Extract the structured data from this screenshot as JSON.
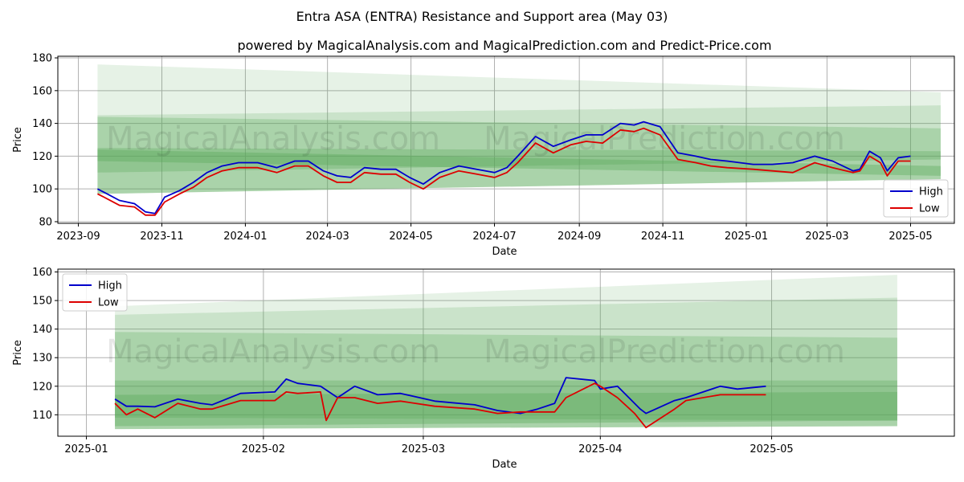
{
  "title": "Entra ASA (ENTRA) Resistance and Support area (May 03)",
  "subtitle": "powered by MagicalAnalysis.com and MagicalPrediction.com and Predict-Price.com",
  "watermarks": [
    "MagicalAnalysis.com",
    "MagicalPrediction.com"
  ],
  "colors": {
    "high": "#0000cc",
    "low": "#dd0000",
    "band": "#5aa85a",
    "grid": "#b0b0b0"
  },
  "chart_data": [
    {
      "type": "line",
      "xlabel": "Date",
      "ylabel": "Price",
      "xlim": [
        "2023-08-17",
        "2025-06-02"
      ],
      "ylim": [
        79,
        181
      ],
      "grid": true,
      "legend": "lower right",
      "x_ticks": [
        "2023-09",
        "2023-11",
        "2024-01",
        "2024-03",
        "2024-05",
        "2024-07",
        "2024-09",
        "2024-11",
        "2025-01",
        "2025-03",
        "2025-05"
      ],
      "y_ticks": [
        80,
        100,
        120,
        140,
        160,
        180
      ],
      "bands": [
        {
          "x": [
            "2023-09-15",
            "2025-05-23"
          ],
          "upper": [
            176,
            159
          ],
          "lower": [
            97,
            106
          ]
        },
        {
          "x": [
            "2023-09-15",
            "2025-05-23"
          ],
          "upper": [
            145,
            151
          ],
          "lower": [
            97,
            106
          ]
        },
        {
          "x": [
            "2023-09-15",
            "2025-05-23"
          ],
          "upper": [
            144,
            137
          ],
          "lower": [
            97,
            106
          ]
        },
        {
          "x": [
            "2023-09-15",
            "2025-05-23"
          ],
          "upper": [
            125,
            123
          ],
          "lower": [
            110,
            118
          ]
        },
        {
          "x": [
            "2023-09-15",
            "2025-05-23"
          ],
          "upper": [
            124,
            114
          ],
          "lower": [
            117,
            108
          ]
        }
      ],
      "series": [
        {
          "name": "High",
          "x": [
            "2023-09-15",
            "2023-09-22",
            "2023-10-01",
            "2023-10-12",
            "2023-10-20",
            "2023-10-27",
            "2023-11-03",
            "2023-11-14",
            "2023-11-24",
            "2023-12-04",
            "2023-12-15",
            "2023-12-27",
            "2024-01-10",
            "2024-01-24",
            "2024-02-06",
            "2024-02-16",
            "2024-02-27",
            "2024-03-08",
            "2024-03-18",
            "2024-03-28",
            "2024-04-09",
            "2024-04-20",
            "2024-04-30",
            "2024-05-10",
            "2024-05-22",
            "2024-06-05",
            "2024-06-18",
            "2024-07-01",
            "2024-07-10",
            "2024-07-18",
            "2024-07-31",
            "2024-08-13",
            "2024-08-26",
            "2024-09-06",
            "2024-09-18",
            "2024-10-01",
            "2024-10-11",
            "2024-10-18",
            "2024-10-30",
            "2024-11-12",
            "2024-11-25",
            "2024-12-06",
            "2024-12-18",
            "2025-01-06",
            "2025-01-20",
            "2025-02-04",
            "2025-02-20",
            "2025-03-05",
            "2025-03-20",
            "2025-03-25",
            "2025-04-01",
            "2025-04-09",
            "2025-04-14",
            "2025-04-22",
            "2025-05-01"
          ],
          "y": [
            100,
            97,
            93,
            91,
            86,
            85,
            95,
            99,
            104,
            110,
            114,
            116,
            116,
            113,
            117,
            117,
            111,
            108,
            107,
            113,
            112,
            112,
            107,
            103,
            110,
            114,
            112,
            110,
            113,
            120,
            132,
            126,
            130,
            133,
            133,
            140,
            139,
            141,
            138,
            122,
            120,
            118,
            117,
            115,
            115,
            116,
            120,
            117,
            111,
            112,
            123,
            119,
            111,
            119,
            120
          ]
        },
        {
          "name": "Low",
          "x": [
            "2023-09-15",
            "2023-09-22",
            "2023-10-01",
            "2023-10-12",
            "2023-10-20",
            "2023-10-27",
            "2023-11-03",
            "2023-11-14",
            "2023-11-24",
            "2023-12-04",
            "2023-12-15",
            "2023-12-27",
            "2024-01-10",
            "2024-01-24",
            "2024-02-06",
            "2024-02-16",
            "2024-02-27",
            "2024-03-08",
            "2024-03-18",
            "2024-03-28",
            "2024-04-09",
            "2024-04-20",
            "2024-04-30",
            "2024-05-10",
            "2024-05-22",
            "2024-06-05",
            "2024-06-18",
            "2024-07-01",
            "2024-07-10",
            "2024-07-18",
            "2024-07-31",
            "2024-08-13",
            "2024-08-26",
            "2024-09-06",
            "2024-09-18",
            "2024-10-01",
            "2024-10-11",
            "2024-10-18",
            "2024-10-30",
            "2024-11-12",
            "2024-11-25",
            "2024-12-06",
            "2024-12-18",
            "2025-01-06",
            "2025-01-20",
            "2025-02-04",
            "2025-02-20",
            "2025-03-05",
            "2025-03-20",
            "2025-03-25",
            "2025-04-01",
            "2025-04-09",
            "2025-04-14",
            "2025-04-22",
            "2025-05-01"
          ],
          "y": [
            97,
            94,
            90,
            89,
            84,
            84,
            92,
            97,
            101,
            107,
            111,
            113,
            113,
            110,
            114,
            114,
            108,
            104,
            104,
            110,
            109,
            109,
            104,
            100,
            107,
            111,
            109,
            107,
            110,
            116,
            128,
            122,
            127,
            129,
            128,
            136,
            135,
            137,
            133,
            118,
            116,
            114,
            113,
            112,
            111,
            110,
            116,
            113,
            110,
            111,
            120,
            116,
            108,
            117,
            117
          ]
        }
      ]
    },
    {
      "type": "line",
      "xlabel": "Date",
      "ylabel": "Price",
      "xlim": [
        "2024-12-27",
        "2025-06-02"
      ],
      "ylim": [
        102.5,
        161
      ],
      "grid": true,
      "legend": "upper left",
      "x_ticks": [
        "2025-01",
        "2025-02",
        "2025-03",
        "2025-04",
        "2025-05"
      ],
      "y_ticks": [
        110,
        120,
        130,
        140,
        150,
        160
      ],
      "bands": [
        {
          "x": [
            "2025-01-06",
            "2025-05-23"
          ],
          "upper": [
            148,
            159
          ],
          "lower": [
            105,
            106
          ]
        },
        {
          "x": [
            "2025-01-06",
            "2025-05-23"
          ],
          "upper": [
            145,
            151
          ],
          "lower": [
            105,
            106
          ]
        },
        {
          "x": [
            "2025-01-06",
            "2025-05-23"
          ],
          "upper": [
            139,
            137
          ],
          "lower": [
            105,
            106
          ]
        },
        {
          "x": [
            "2025-01-06",
            "2025-05-23"
          ],
          "upper": [
            122,
            122
          ],
          "lower": [
            109,
            108
          ]
        },
        {
          "x": [
            "2025-01-06",
            "2025-05-23"
          ],
          "upper": [
            117,
            118
          ],
          "lower": [
            106,
            108
          ]
        }
      ],
      "series": [
        {
          "name": "High",
          "x": [
            "2025-01-06",
            "2025-01-08",
            "2025-01-10",
            "2025-01-13",
            "2025-01-17",
            "2025-01-21",
            "2025-01-23",
            "2025-01-28",
            "2025-02-03",
            "2025-02-05",
            "2025-02-07",
            "2025-02-11",
            "2025-02-14",
            "2025-02-17",
            "2025-02-21",
            "2025-02-25",
            "2025-03-03",
            "2025-03-10",
            "2025-03-14",
            "2025-03-18",
            "2025-03-21",
            "2025-03-24",
            "2025-03-26",
            "2025-03-31",
            "2025-04-01",
            "2025-04-04",
            "2025-04-08",
            "2025-04-09",
            "2025-04-14",
            "2025-04-16",
            "2025-04-22",
            "2025-04-25",
            "2025-04-30"
          ],
          "y": [
            115.5,
            113,
            113,
            112.8,
            115.5,
            114,
            113.5,
            117.5,
            118,
            122.5,
            121,
            120,
            116,
            120,
            117,
            117.5,
            114.8,
            113.5,
            111.5,
            110.5,
            112,
            114,
            123,
            122,
            119,
            120,
            112,
            110.5,
            115,
            116,
            120,
            119,
            120
          ]
        },
        {
          "name": "Low",
          "x": [
            "2025-01-06",
            "2025-01-08",
            "2025-01-10",
            "2025-01-13",
            "2025-01-17",
            "2025-01-21",
            "2025-01-23",
            "2025-01-28",
            "2025-02-03",
            "2025-02-05",
            "2025-02-07",
            "2025-02-11",
            "2025-02-12",
            "2025-02-14",
            "2025-02-17",
            "2025-02-21",
            "2025-02-25",
            "2025-03-03",
            "2025-03-10",
            "2025-03-14",
            "2025-03-18",
            "2025-03-21",
            "2025-03-24",
            "2025-03-26",
            "2025-03-31",
            "2025-04-01",
            "2025-04-04",
            "2025-04-07",
            "2025-04-08",
            "2025-04-09",
            "2025-04-14",
            "2025-04-16",
            "2025-04-22",
            "2025-04-25",
            "2025-04-30"
          ],
          "y": [
            114,
            110,
            112,
            109,
            114,
            112,
            112,
            115,
            115,
            118,
            117.5,
            118,
            108,
            116,
            116,
            114,
            114.8,
            113,
            112,
            110.5,
            111,
            111,
            111,
            116,
            121,
            120,
            116,
            110.5,
            108,
            105.5,
            112,
            115,
            117,
            117,
            117
          ]
        }
      ]
    }
  ],
  "legend": {
    "high": "High",
    "low": "Low"
  }
}
